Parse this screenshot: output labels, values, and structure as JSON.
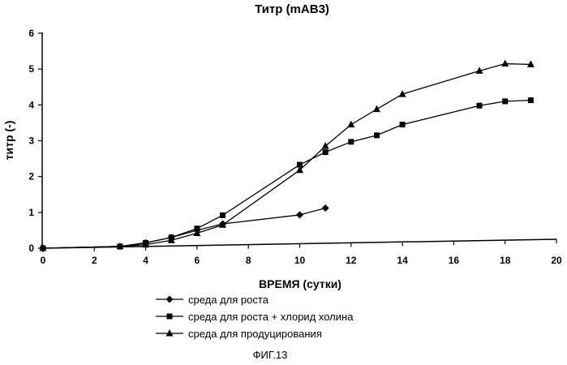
{
  "chart_data": {
    "type": "line",
    "title": "Титр (mAB3)",
    "xlabel": "ВРЕМЯ (сутки)",
    "ylabel": "титр (-)",
    "xlim": [
      0,
      20
    ],
    "ylim": [
      0,
      6
    ],
    "x_ticks": [
      "0",
      "2",
      "4",
      "6",
      "8",
      "10",
      "12",
      "14",
      "16",
      "18",
      "20"
    ],
    "y_ticks": [
      "0",
      "1",
      "2",
      "3",
      "4",
      "5",
      "6"
    ],
    "grid": false,
    "legend_position": "bottom",
    "series": [
      {
        "name": "среда для роста",
        "marker": "diamond",
        "x": [
          0,
          3,
          4,
          5,
          6,
          7,
          10,
          11
        ],
        "y": [
          0.0,
          0.05,
          0.15,
          0.3,
          0.5,
          0.68,
          0.93,
          1.12
        ]
      },
      {
        "name": "среда для роста + хлорид холина",
        "marker": "square",
        "x": [
          0,
          3,
          4,
          5,
          6,
          7,
          10,
          11,
          12,
          13,
          14,
          17,
          18,
          19
        ],
        "y": [
          0.0,
          0.05,
          0.15,
          0.3,
          0.55,
          0.92,
          2.33,
          2.68,
          2.97,
          3.15,
          3.45,
          3.98,
          4.1,
          4.13
        ]
      },
      {
        "name": "среда для продуцирования",
        "marker": "triangle",
        "x": [
          0,
          3,
          4,
          5,
          6,
          7,
          10,
          11,
          12,
          13,
          14,
          17,
          18,
          19
        ],
        "y": [
          0.0,
          0.05,
          0.1,
          0.22,
          0.42,
          0.65,
          2.18,
          2.85,
          3.45,
          3.88,
          4.3,
          4.95,
          5.15,
          5.13
        ]
      }
    ],
    "baseline": {
      "x": [
        0,
        20
      ],
      "y": [
        0.0,
        0.25
      ]
    }
  },
  "caption": "ФИГ.13"
}
